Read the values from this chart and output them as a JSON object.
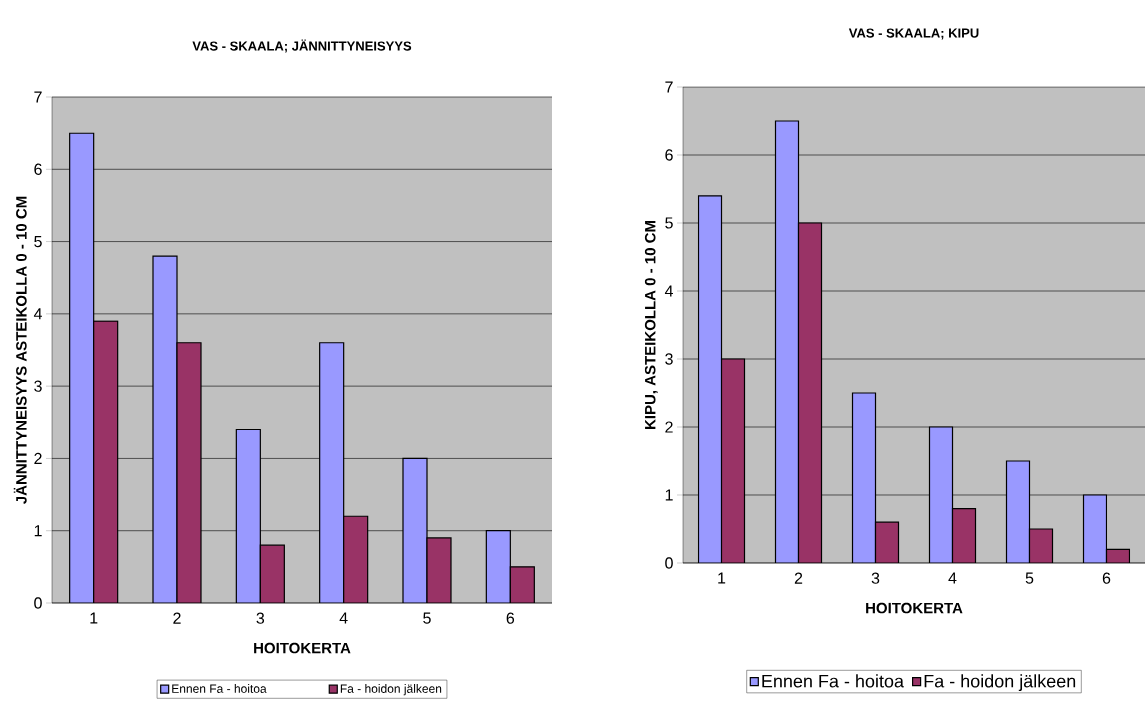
{
  "chart_data": [
    {
      "type": "bar",
      "title": "VAS - SKAALA; JÄNNITTYNEISYYS",
      "xlabel": "HOITOKERTA",
      "ylabel": "JÄNNITTYNEISYYS ASTEIKOLLA 0 - 10 CM",
      "categories": [
        "1",
        "2",
        "3",
        "4",
        "5",
        "6"
      ],
      "series": [
        {
          "name": "Ennen Fa - hoitoa",
          "color": "#9999ff",
          "values": [
            6.5,
            4.8,
            2.4,
            3.6,
            2.0,
            1.0
          ]
        },
        {
          "name": "Fa - hoidon jälkeen",
          "color": "#993366",
          "values": [
            3.9,
            3.6,
            0.8,
            1.2,
            0.9,
            0.5
          ]
        }
      ],
      "ylim": [
        0,
        7
      ],
      "yticks": [
        0,
        1,
        2,
        3,
        4,
        5,
        6,
        7
      ],
      "grid": "y",
      "legend": "bottom"
    },
    {
      "type": "bar",
      "title": "VAS - SKAALA; KIPU",
      "xlabel": "HOITOKERTA",
      "ylabel": "KIPU, ASTEIKOLLA 0 - 10 CM",
      "categories": [
        "1",
        "2",
        "3",
        "4",
        "5",
        "6"
      ],
      "series": [
        {
          "name": "Ennen Fa - hoitoa",
          "color": "#9999ff",
          "values": [
            5.4,
            6.5,
            2.5,
            2.0,
            1.5,
            1.0
          ]
        },
        {
          "name": "Fa - hoidon jälkeen",
          "color": "#993366",
          "values": [
            3.0,
            5.0,
            0.6,
            0.8,
            0.5,
            0.2
          ]
        }
      ],
      "ylim": [
        0,
        7
      ],
      "yticks": [
        0,
        1,
        2,
        3,
        4,
        5,
        6,
        7
      ],
      "grid": "y",
      "legend": "bottom"
    }
  ]
}
